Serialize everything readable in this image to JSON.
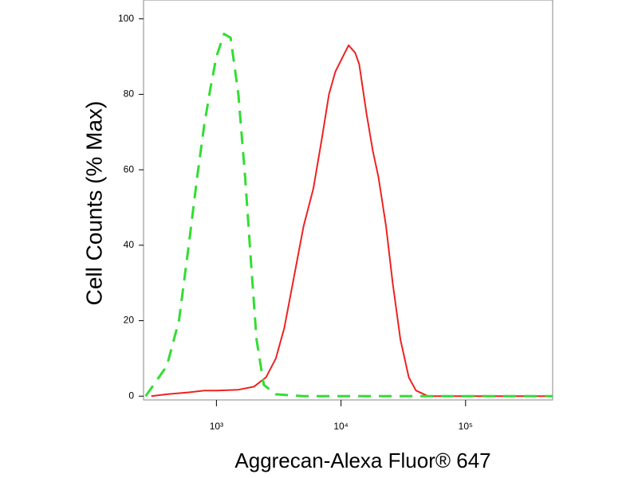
{
  "chart_data": {
    "type": "line",
    "xlabel": "Aggrecan-Alexa Fluor® 647",
    "ylabel": "Cell Counts (% Max)",
    "xscale": "log",
    "xlim": [
      260,
      500000
    ],
    "ylim": [
      -1,
      105
    ],
    "xticks": [
      {
        "value": 1000,
        "label": "10³"
      },
      {
        "value": 10000,
        "label": "10⁴"
      },
      {
        "value": 100000,
        "label": "10⁵"
      }
    ],
    "yticks": [
      0,
      20,
      40,
      60,
      80,
      100
    ],
    "series": [
      {
        "color": "#ee2222",
        "dash": false,
        "x": [
          300,
          400,
          600,
          800,
          1000,
          1500,
          2000,
          2500,
          3000,
          3500,
          4000,
          5000,
          6000,
          7000,
          8000,
          9000,
          10000,
          11500,
          13000,
          14000,
          16000,
          18000,
          20000,
          23000,
          26000,
          30000,
          35000,
          40000,
          50000,
          100000,
          500000
        ],
        "values": [
          0,
          0.5,
          1,
          1.5,
          1.5,
          1.7,
          2.5,
          5,
          10,
          18,
          28,
          45,
          55,
          68,
          80,
          86,
          89,
          93,
          91,
          88,
          75,
          65,
          58,
          45,
          30,
          15,
          5,
          1.5,
          0,
          0,
          0
        ]
      },
      {
        "color": "#33dd33",
        "dash": true,
        "x": [
          270,
          400,
          500,
          600,
          700,
          800,
          900,
          1000,
          1150,
          1300,
          1500,
          1700,
          1900,
          2100,
          2400,
          3000,
          5000,
          10000,
          50000,
          500000
        ],
        "values": [
          0,
          8,
          20,
          40,
          58,
          72,
          82,
          90,
          96,
          95,
          80,
          58,
          35,
          15,
          3,
          0.5,
          0,
          0,
          0,
          0
        ]
      }
    ]
  }
}
